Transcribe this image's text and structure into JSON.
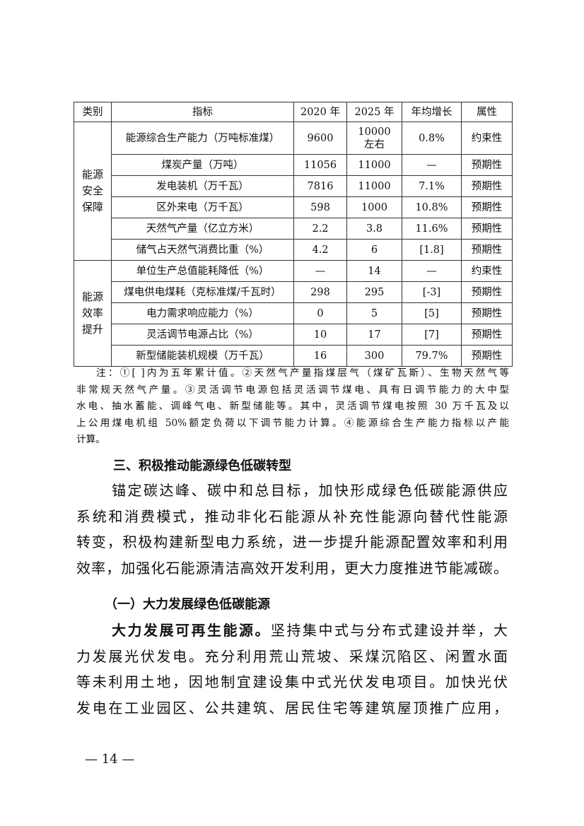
{
  "table": {
    "headers": [
      "类别",
      "指标",
      "2020 年",
      "2025 年",
      "年均增长",
      "属性"
    ],
    "groups": [
      {
        "category": "能源安全保障",
        "rows": [
          [
            "能源综合生产能力（万吨标准煤）",
            "9600",
            "10000 左右",
            "0.8%",
            "约束性"
          ],
          [
            "煤炭产量（万吨）",
            "11056",
            "11000",
            "—",
            "预期性"
          ],
          [
            "发电装机（万千瓦）",
            "7816",
            "11000",
            "7.1%",
            "预期性"
          ],
          [
            "区外来电（万千瓦）",
            "598",
            "1000",
            "10.8%",
            "预期性"
          ],
          [
            "天然气产量（亿立方米）",
            "2.2",
            "3.8",
            "11.6%",
            "预期性"
          ],
          [
            "储气占天然气消费比重（%）",
            "4.2",
            "6",
            "[1.8]",
            "预期性"
          ]
        ]
      },
      {
        "category": "能源效率提升",
        "rows": [
          [
            "单位生产总值能耗降低（%）",
            "—",
            "14",
            "—",
            "约束性"
          ],
          [
            "煤电供电煤耗（克标准煤/千瓦时）",
            "298",
            "295",
            "[-3]",
            "预期性"
          ],
          [
            "电力需求响应能力（%）",
            "0",
            "5",
            "[5]",
            "预期性"
          ],
          [
            "灵活调节电源占比（%）",
            "10",
            "17",
            "[7]",
            "预期性"
          ],
          [
            "新型储能装机规模（万千瓦）",
            "16",
            "300",
            "79.7%",
            "预期性"
          ]
        ]
      }
    ]
  },
  "notes": [
    "注：①[ ]内为五年累计值。②天然气产量指煤层气（煤矿瓦斯）、生物天然气等",
    "非常规天然气产量。③灵活调节电源包括灵活调节煤电、具有日调节能力的大中型",
    "水电、抽水蓄能、调峰气电、新型储能等。其中，灵活调节煤电按照 30 万千瓦及以",
    "上公用煤电机组 50%额定负荷以下调节能力计算。④能源综合生产能力指标以产能",
    "计算。"
  ],
  "section_heading": "三、积极推动能源绿色低碳转型",
  "para1": [
    "锚定碳达峰、碳中和总目标，加快形成绿色低碳能源供应",
    "系统和消费模式，推动非化石能源从补充性能源向替代性能源",
    "转变，积极构建新型电力系统，进一步提升能源配置效率和利用",
    "效率，加强化石能源清洁高效开发利用，更大力度推进节能减碳。"
  ],
  "sub_heading": "（一）大力发展绿色低碳能源",
  "para2_lead": "大力发展可再生能源。",
  "para2": [
    "坚持集中式与分布式建设并举，大",
    "力发展光伏发电。充分利用荒山荒坡、采煤沉陷区、闲置水面",
    "等未利用土地，因地制宜建设集中式光伏发电项目。加快光伏",
    "发电在工业园区、公共建筑、居民住宅等建筑屋顶推广应用，"
  ],
  "page_number": "— 14 —"
}
